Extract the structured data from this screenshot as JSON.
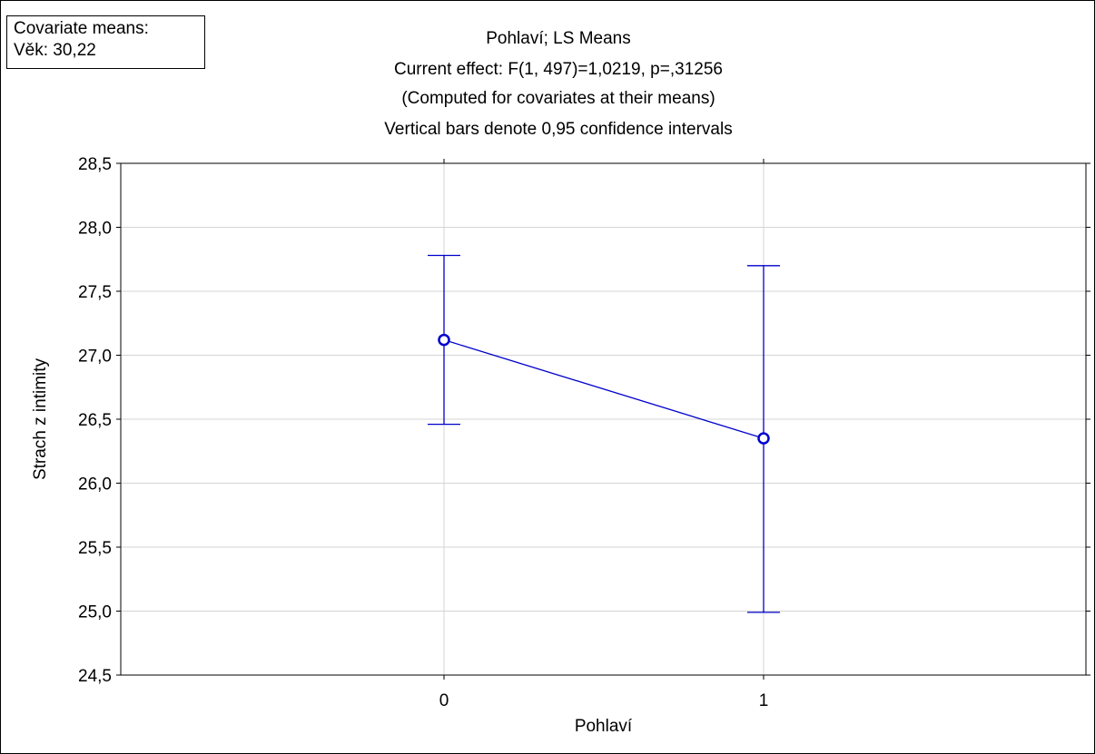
{
  "covariate_box": {
    "line1": "Covariate means:",
    "line2": "Věk: 30,22"
  },
  "chart_data": {
    "type": "line",
    "title_lines": [
      "Pohlaví; LS Means",
      "Current effect: F(1, 497)=1,0219, p=,31256",
      "(Computed for covariates at their means)",
      "Vertical bars denote 0,95 confidence intervals"
    ],
    "xlabel": "Pohlaví",
    "ylabel": "Strach z intimity",
    "categories": [
      "0",
      "1"
    ],
    "means": [
      27.12,
      26.35
    ],
    "ci_lower": [
      26.46,
      24.99
    ],
    "ci_upper": [
      27.78,
      27.7
    ],
    "ylim": [
      24.5,
      28.5
    ],
    "yticks": [
      24.5,
      25.0,
      25.5,
      26.0,
      26.5,
      27.0,
      27.5,
      28.0,
      28.5
    ],
    "ytick_labels": [
      "24,5",
      "25,0",
      "25,5",
      "26,0",
      "26,5",
      "27,0",
      "27,5",
      "28,0",
      "28,5"
    ],
    "grid": true,
    "colors": {
      "series": "#0000cc",
      "grid": "#d4d4d4",
      "axis": "#000000"
    }
  }
}
